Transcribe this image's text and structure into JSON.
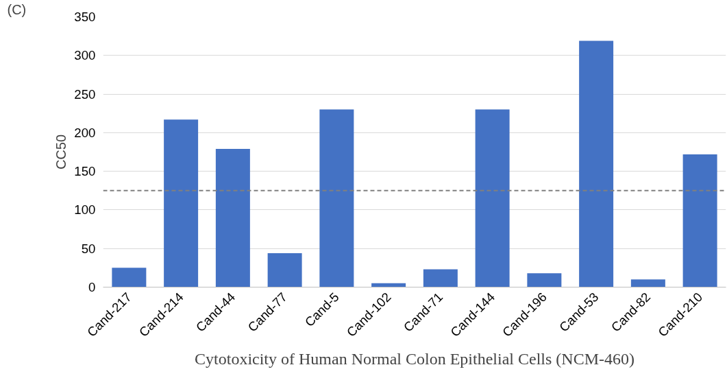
{
  "chart_data": {
    "type": "bar",
    "xlabel": "Cytotoxicity of Human Normal Colon Epithelial Cells (NCM-460)",
    "ylabel": "CC50",
    "categories": [
      "Cand-217",
      "Cand-214",
      "Cand-44",
      "Cand-77",
      "Cand-5",
      "Cand-102",
      "Cand-71",
      "Cand-144",
      "Cand-196",
      "Cand-53",
      "Cand-82",
      "Cand-210"
    ],
    "values": [
      25,
      217,
      179,
      44,
      230,
      5,
      23,
      230,
      18,
      319,
      10,
      172
    ],
    "color": "#4472c4",
    "ylim": [
      0,
      350
    ],
    "yticks": [
      0,
      50,
      100,
      150,
      200,
      250,
      300,
      350
    ],
    "grid": "y",
    "ref_lines": [
      {
        "axis": "y",
        "value": 125,
        "color": "#808080",
        "line_style": "dashed"
      }
    ],
    "annotations": [
      "(C)"
    ]
  }
}
